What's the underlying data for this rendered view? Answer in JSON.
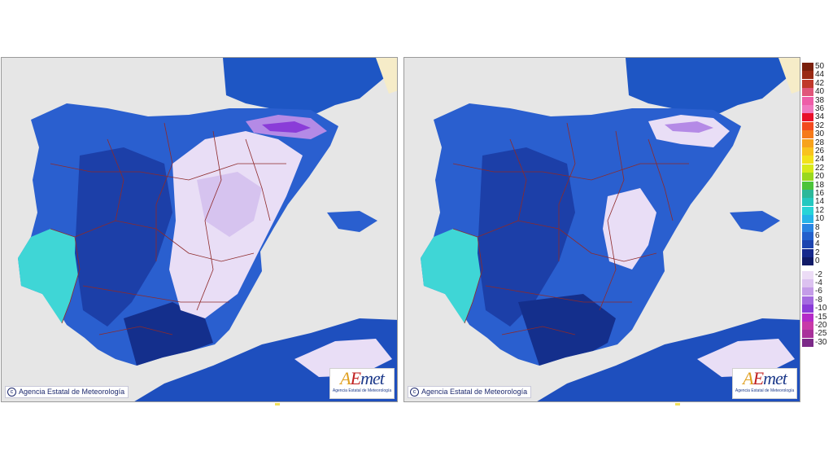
{
  "panels": [
    {
      "id": "left",
      "credit": "Agencia Estatal de Meteorología",
      "logo_text": "AEmet",
      "logo_subtitle": "Agencia Estatal de Meteorología"
    },
    {
      "id": "right",
      "credit": "Agencia Estatal de Meteorología",
      "logo_text": "AEmet",
      "logo_subtitle": "Agencia Estatal de Meteorología"
    }
  ],
  "legend": {
    "positive": [
      {
        "label": "50",
        "color": "#7a1f0c"
      },
      {
        "label": "44",
        "color": "#9a2a14"
      },
      {
        "label": "42",
        "color": "#c0392b"
      },
      {
        "label": "40",
        "color": "#e0567a"
      },
      {
        "label": "38",
        "color": "#ee5ea8"
      },
      {
        "label": "36",
        "color": "#f07ac0"
      },
      {
        "label": "34",
        "color": "#e8102a"
      },
      {
        "label": "32",
        "color": "#f24a1e"
      },
      {
        "label": "30",
        "color": "#f57a1a"
      },
      {
        "label": "28",
        "color": "#f7a21c"
      },
      {
        "label": "26",
        "color": "#f8c31e"
      },
      {
        "label": "24",
        "color": "#f2e21a"
      },
      {
        "label": "22",
        "color": "#d8ea1a"
      },
      {
        "label": "20",
        "color": "#9ad81e"
      },
      {
        "label": "18",
        "color": "#4cc43a"
      },
      {
        "label": "16",
        "color": "#2cb89a"
      },
      {
        "label": "14",
        "color": "#24c8c0"
      },
      {
        "label": "12",
        "color": "#28d4d8"
      },
      {
        "label": "10",
        "color": "#26b4e8"
      },
      {
        "label": "8",
        "color": "#2a84e2"
      },
      {
        "label": "6",
        "color": "#2260cc"
      },
      {
        "label": "4",
        "color": "#1c44b0"
      },
      {
        "label": "2",
        "color": "#16288c"
      },
      {
        "label": "0",
        "color": "#101a66"
      }
    ],
    "negative": [
      {
        "label": "-2",
        "color": "#ecdcf6"
      },
      {
        "label": "-4",
        "color": "#dcc2f0"
      },
      {
        "label": "-6",
        "color": "#c49ce8"
      },
      {
        "label": "-8",
        "color": "#a46ae0"
      },
      {
        "label": "-10",
        "color": "#8a3cd8"
      },
      {
        "label": "-15",
        "color": "#b42ac8"
      },
      {
        "label": "-20",
        "color": "#c83aa8"
      },
      {
        "label": "-25",
        "color": "#a8309a"
      },
      {
        "label": "-30",
        "color": "#7c2a88"
      }
    ]
  }
}
